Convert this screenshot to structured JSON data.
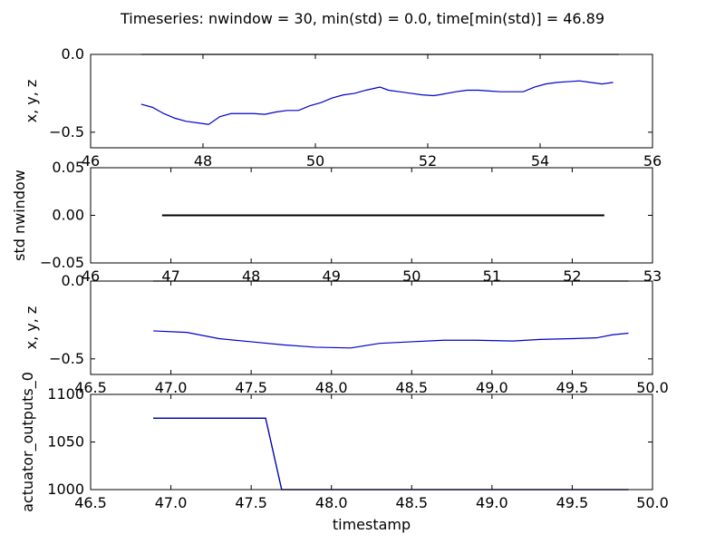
{
  "figure": {
    "title": "Timeseries: nwindow = 30, min(std) = 0.0, time[min(std)] = 46.89"
  },
  "chart_data": [
    {
      "type": "line",
      "ylabel": "x, y, z",
      "xlim": [
        46,
        56
      ],
      "ylim": [
        -0.6,
        0.0
      ],
      "xticks": [
        46,
        48,
        50,
        52,
        54,
        56
      ],
      "yticks": [
        0.0,
        -0.5
      ],
      "xtick_labels": [
        "46",
        "48",
        "50",
        "52",
        "54",
        "56"
      ],
      "ytick_labels": [
        "0.0",
        "−0.5"
      ],
      "series": [
        {
          "color": "#0000cc",
          "x": [
            46.9,
            47.1,
            47.3,
            47.5,
            47.7,
            47.9,
            48.1,
            48.3,
            48.5,
            48.7,
            48.9,
            49.1,
            49.3,
            49.5,
            49.7,
            49.9,
            50.1,
            50.3,
            50.5,
            50.7,
            50.9,
            51.15,
            51.3,
            51.5,
            51.7,
            51.9,
            52.1,
            52.2,
            52.5,
            52.7,
            52.9,
            53.1,
            53.3,
            53.5,
            53.7,
            53.9,
            54.1,
            54.3,
            54.5,
            54.7,
            54.9,
            55.1,
            55.3
          ],
          "y": [
            -0.32,
            -0.34,
            -0.38,
            -0.41,
            -0.43,
            -0.44,
            -0.45,
            -0.4,
            -0.38,
            -0.38,
            -0.38,
            -0.385,
            -0.37,
            -0.36,
            -0.36,
            -0.33,
            -0.31,
            -0.28,
            -0.26,
            -0.25,
            -0.23,
            -0.21,
            -0.23,
            -0.24,
            -0.25,
            -0.26,
            -0.265,
            -0.26,
            -0.24,
            -0.23,
            -0.23,
            -0.235,
            -0.24,
            -0.24,
            -0.24,
            -0.21,
            -0.19,
            -0.18,
            -0.175,
            -0.17,
            -0.18,
            -0.19,
            -0.18
          ]
        },
        {
          "color": "#000000",
          "x": [
            46.9,
            55.4
          ],
          "y": [
            0.0,
            0.0
          ]
        }
      ]
    },
    {
      "type": "line",
      "ylabel": "std nwindow",
      "xlim": [
        46,
        53
      ],
      "ylim": [
        -0.05,
        0.05
      ],
      "xticks": [
        46,
        47,
        48,
        49,
        50,
        51,
        52,
        53
      ],
      "yticks": [
        0.05,
        0.0,
        -0.05
      ],
      "xtick_labels": [
        "46",
        "47",
        "48",
        "49",
        "50",
        "51",
        "52",
        "53"
      ],
      "ytick_labels": [
        "0.05",
        "0.00",
        "−0.05"
      ],
      "series": [
        {
          "color": "#000000",
          "x": [
            46.89,
            52.4
          ],
          "y": [
            0.0,
            0.0
          ]
        }
      ]
    },
    {
      "type": "line",
      "ylabel": "x, y, z",
      "xlim": [
        46.5,
        50.0
      ],
      "ylim": [
        -0.6,
        0.0
      ],
      "xticks": [
        46.5,
        47.0,
        47.5,
        48.0,
        48.5,
        49.0,
        49.5,
        50.0
      ],
      "yticks": [
        0.0,
        -0.5
      ],
      "xtick_labels": [
        "46.5",
        "47.0",
        "47.5",
        "48.0",
        "48.5",
        "49.0",
        "49.5",
        "50.0"
      ],
      "ytick_labels": [
        "0.0",
        "−0.5"
      ],
      "series": [
        {
          "color": "#0000cc",
          "x": [
            46.89,
            47.1,
            47.3,
            47.5,
            47.7,
            47.9,
            48.12,
            48.3,
            48.5,
            48.7,
            48.9,
            49.13,
            49.3,
            49.5,
            49.65,
            49.75,
            49.85
          ],
          "y": [
            -0.32,
            -0.33,
            -0.37,
            -0.39,
            -0.41,
            -0.425,
            -0.43,
            -0.4,
            -0.39,
            -0.38,
            -0.38,
            -0.385,
            -0.375,
            -0.37,
            -0.365,
            -0.345,
            -0.335
          ]
        },
        {
          "color": "#000000",
          "x": [
            46.89,
            49.85
          ],
          "y": [
            0.0,
            0.0
          ]
        }
      ]
    },
    {
      "type": "line",
      "ylabel": "actuator_outputs_0",
      "xlabel": "timestamp",
      "xlim": [
        46.5,
        50.0
      ],
      "ylim": [
        1000,
        1100
      ],
      "xticks": [
        46.5,
        47.0,
        47.5,
        48.0,
        48.5,
        49.0,
        49.5,
        50.0
      ],
      "yticks": [
        1100,
        1050,
        1000
      ],
      "xtick_labels": [
        "46.5",
        "47.0",
        "47.5",
        "48.0",
        "48.5",
        "49.0",
        "49.5",
        "50.0"
      ],
      "ytick_labels": [
        "1100",
        "1050",
        "1000"
      ],
      "series": [
        {
          "color": "#000000",
          "x": [
            46.89,
            47.59,
            47.69,
            49.85
          ],
          "y": [
            1075,
            1075,
            1000,
            1000
          ]
        },
        {
          "color": "#0000cc",
          "x": [
            46.89,
            47.59,
            47.69,
            49.85
          ],
          "y": [
            1075,
            1075,
            1000,
            1000
          ]
        }
      ]
    }
  ]
}
